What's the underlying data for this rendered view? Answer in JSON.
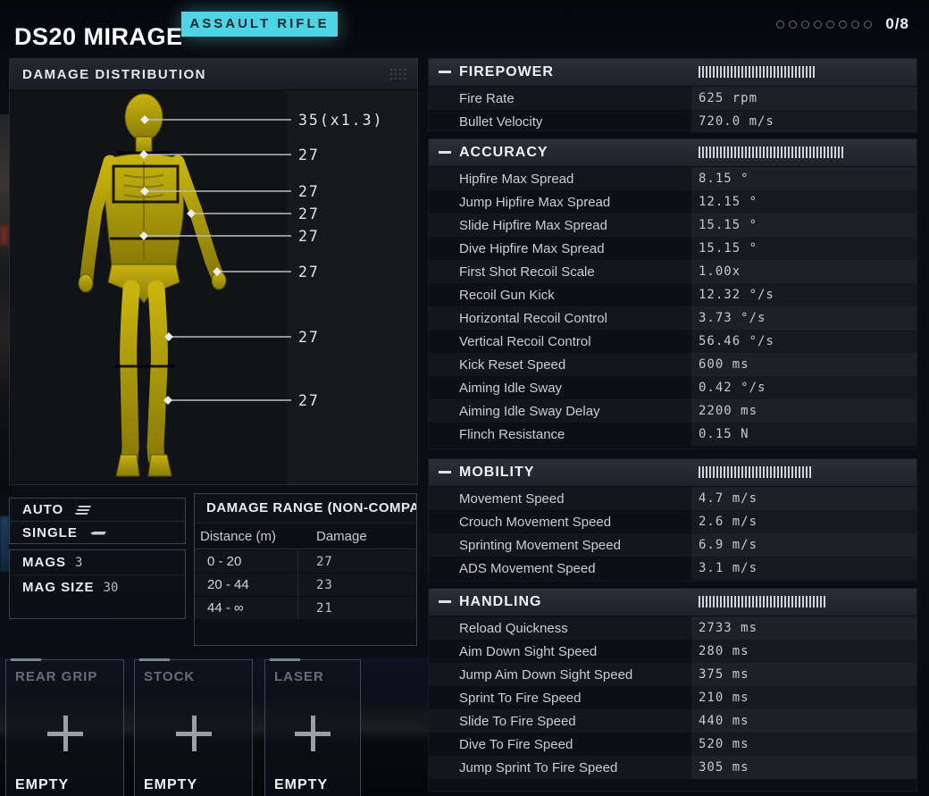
{
  "header": {
    "title": "DS20 MIRAGE",
    "badge": "ASSAULT RIFLE",
    "slots_counter": "0/8",
    "slots_total_dots": 8
  },
  "damage_distribution": {
    "title": "DAMAGE DISTRIBUTION",
    "callouts": [
      {
        "part": "head",
        "value": "35(x1.3)"
      },
      {
        "part": "neck",
        "value": "27"
      },
      {
        "part": "chest",
        "value": "27"
      },
      {
        "part": "arm",
        "value": "27"
      },
      {
        "part": "abdomen",
        "value": "27"
      },
      {
        "part": "hand",
        "value": "27"
      },
      {
        "part": "thigh",
        "value": "27"
      },
      {
        "part": "shin",
        "value": "27"
      }
    ]
  },
  "fire_modes": {
    "items": [
      {
        "label": "AUTO",
        "icon": "burst-bullets-icon"
      },
      {
        "label": "SINGLE",
        "icon": "single-bullet-icon"
      }
    ]
  },
  "magazine": {
    "mags_label": "MAGS",
    "mags_value": "3",
    "mag_size_label": "MAG SIZE",
    "mag_size_value": "30"
  },
  "damage_range": {
    "title": "DAMAGE RANGE (NON-COMPA",
    "columns": [
      "Distance (m)",
      "Damage"
    ],
    "rows": [
      {
        "distance": "0 - 20",
        "damage": "27"
      },
      {
        "distance": "20 - 44",
        "damage": "23"
      },
      {
        "distance": "44 - ∞",
        "damage": "21"
      }
    ]
  },
  "stat_panels": [
    {
      "title": "FIREPOWER",
      "rows": [
        {
          "label": "Fire Rate",
          "value": "625 rpm"
        },
        {
          "label": "Bullet Velocity",
          "value": "720.0 m/s"
        }
      ]
    },
    {
      "title": "ACCURACY",
      "rows": [
        {
          "label": "Hipfire Max Spread",
          "value": "8.15 °"
        },
        {
          "label": "Jump Hipfire Max Spread",
          "value": "12.15 °"
        },
        {
          "label": "Slide Hipfire Max Spread",
          "value": "15.15 °"
        },
        {
          "label": "Dive Hipfire Max Spread",
          "value": "15.15 °"
        },
        {
          "label": "First Shot Recoil Scale",
          "value": "1.00x"
        },
        {
          "label": "Recoil Gun Kick",
          "value": "12.32 °/s"
        },
        {
          "label": "Horizontal Recoil Control",
          "value": "3.73 °/s"
        },
        {
          "label": "Vertical Recoil Control",
          "value": "56.46 °/s"
        },
        {
          "label": "Kick Reset Speed",
          "value": "600 ms"
        },
        {
          "label": "Aiming Idle Sway",
          "value": "0.42 °/s"
        },
        {
          "label": "Aiming Idle Sway Delay",
          "value": "2200 ms"
        },
        {
          "label": "Flinch Resistance",
          "value": "0.15 N"
        }
      ]
    },
    {
      "title": "MOBILITY",
      "rows": [
        {
          "label": "Movement Speed",
          "value": "4.7 m/s"
        },
        {
          "label": "Crouch Movement Speed",
          "value": "2.6 m/s"
        },
        {
          "label": "Sprinting Movement Speed",
          "value": "6.9 m/s"
        },
        {
          "label": "ADS Movement Speed",
          "value": "3.1 m/s"
        }
      ]
    },
    {
      "title": "HANDLING",
      "rows": [
        {
          "label": "Reload Quickness",
          "value": "2733 ms"
        },
        {
          "label": "Aim Down Sight Speed",
          "value": "280 ms"
        },
        {
          "label": "Jump Aim Down Sight Speed",
          "value": "375 ms"
        },
        {
          "label": "Sprint To Fire Speed",
          "value": "210 ms"
        },
        {
          "label": "Slide To Fire Speed",
          "value": "440 ms"
        },
        {
          "label": "Dive To Fire Speed",
          "value": "520 ms"
        },
        {
          "label": "Jump Sprint To Fire Speed",
          "value": "305 ms"
        }
      ]
    }
  ],
  "attachments": [
    {
      "slot": "REAR GRIP",
      "status": "EMPTY"
    },
    {
      "slot": "STOCK",
      "status": "EMPTY"
    },
    {
      "slot": "LASER",
      "status": "EMPTY"
    }
  ],
  "colors": {
    "accent_cyan": "#4fd4e4",
    "body_yellow": "#c4ae0c",
    "panel_bg": "#0d1015",
    "tick_white": "#d0d4d8"
  }
}
